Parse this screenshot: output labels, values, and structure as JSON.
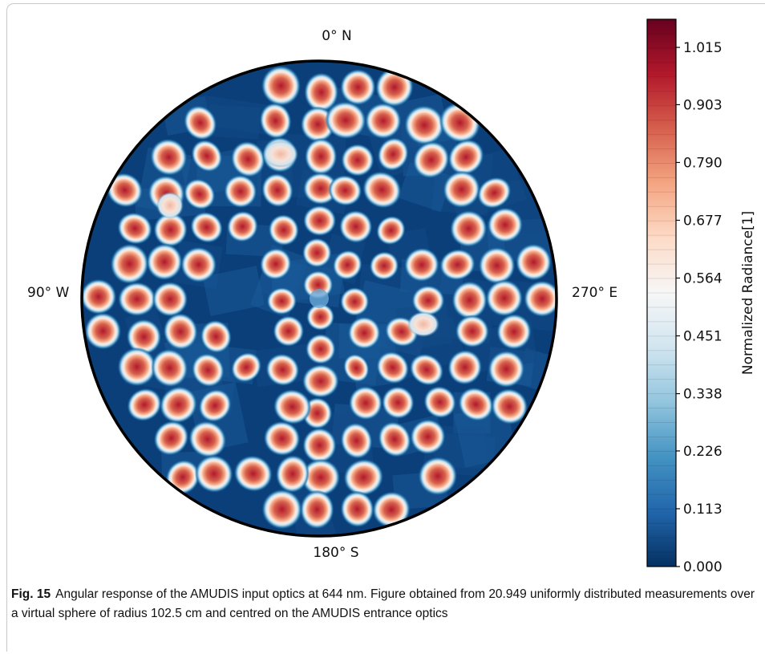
{
  "chart_data": {
    "type": "heatmap",
    "projection": "polar",
    "compass": {
      "north": "0° N",
      "south": "180° S",
      "west": "90° W",
      "east": "270° E"
    },
    "colorbar": {
      "label": "Normalized Radiance[1]",
      "ticks": [
        "0.000",
        "0.113",
        "0.226",
        "0.338",
        "0.451",
        "0.564",
        "0.677",
        "0.790",
        "0.903",
        "1.015"
      ],
      "range": [
        0.0,
        1.07
      ],
      "colormap": "RdBu_r",
      "colors": [
        "#053061",
        "#2166ac",
        "#4393c3",
        "#92c5de",
        "#d1e5f0",
        "#f7f7f7",
        "#fddbc7",
        "#f4a582",
        "#d6604d",
        "#b2182b",
        "#67001f"
      ]
    },
    "description_values": {
      "background_value": 0.0,
      "spot_peak_value": 0.95
    }
  },
  "caption": {
    "fig_label": "Fig. 15",
    "text": "Angular response of the AMUDIS input optics at 644 nm. Figure obtained from 20.949 uniformly distributed measurements over a virtual sphere of radius 102.5 cm and centred on the AMUDIS entrance optics"
  }
}
